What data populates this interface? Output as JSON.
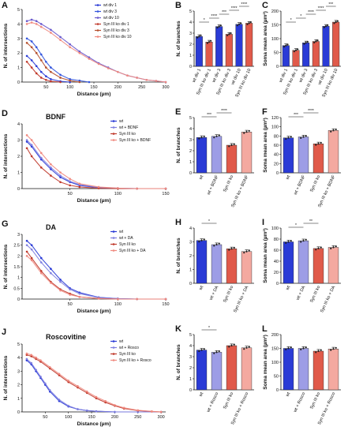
{
  "panel_labels": [
    "A",
    "B",
    "C",
    "D",
    "E",
    "F",
    "G",
    "H",
    "I",
    "J",
    "K",
    "L"
  ],
  "chart_data": [
    {
      "id": "A",
      "type": "line",
      "xlabel": "Distance (µm)",
      "ylabel": "N. of intersections",
      "xlim": [
        0,
        300
      ],
      "ylim": [
        0,
        5
      ],
      "xticks": [
        50,
        100,
        150,
        200,
        250,
        300
      ],
      "yticks": [
        0,
        1,
        2,
        3,
        4,
        5
      ],
      "legend": "top-right",
      "series": [
        {
          "name": "wt div 1",
          "color": "#2a3bd6",
          "x": [
            10,
            20,
            30,
            40,
            50,
            60,
            80,
            100
          ],
          "y": [
            1.8,
            1.5,
            1.1,
            0.7,
            0.4,
            0.2,
            0.05,
            0
          ]
        },
        {
          "name": "wt div 3",
          "color": "#3355dd",
          "x": [
            10,
            20,
            30,
            40,
            50,
            60,
            80,
            100,
            120,
            140
          ],
          "y": [
            3.0,
            2.8,
            2.4,
            1.9,
            1.4,
            1.0,
            0.5,
            0.2,
            0.1,
            0
          ]
        },
        {
          "name": "wt div 10",
          "color": "#6a5acd",
          "x": [
            10,
            20,
            30,
            40,
            60,
            80,
            100,
            120,
            140,
            160,
            180,
            200,
            220,
            240,
            260,
            280,
            300
          ],
          "y": [
            4.2,
            4.3,
            4.2,
            4.0,
            3.6,
            3.1,
            2.6,
            2.1,
            1.7,
            1.3,
            1.0,
            0.7,
            0.45,
            0.3,
            0.15,
            0.08,
            0
          ]
        },
        {
          "name": "Syn III ko div 1",
          "color": "#c0392b",
          "x": [
            10,
            20,
            30,
            40,
            50,
            60,
            80
          ],
          "y": [
            1.4,
            1.0,
            0.6,
            0.3,
            0.15,
            0.05,
            0
          ]
        },
        {
          "name": "Syn III ko div 3",
          "color": "#b5502e",
          "x": [
            10,
            20,
            30,
            40,
            50,
            60,
            80,
            100,
            120
          ],
          "y": [
            2.7,
            2.4,
            2.0,
            1.5,
            1.0,
            0.7,
            0.3,
            0.1,
            0
          ]
        },
        {
          "name": "Syn III ko div 10",
          "color": "#f08a80",
          "x": [
            10,
            20,
            30,
            40,
            60,
            80,
            100,
            120,
            140,
            160,
            180,
            200,
            220,
            240,
            260,
            280,
            300
          ],
          "y": [
            4.0,
            4.1,
            4.0,
            3.8,
            3.4,
            2.9,
            2.4,
            2.0,
            1.6,
            1.25,
            0.95,
            0.7,
            0.45,
            0.3,
            0.15,
            0.08,
            0
          ]
        }
      ]
    },
    {
      "id": "B",
      "type": "bar",
      "ylabel": "N. of branches",
      "ylim": [
        0,
        5
      ],
      "yticks": [
        0,
        1,
        2,
        3,
        4,
        5
      ],
      "categories": [
        "wt div 1",
        "Syn III ko div 1",
        "wt div 3",
        "Syn III ko div 3",
        "wt div 10",
        "Syn III ko div 10"
      ],
      "values": [
        2.7,
        2.2,
        3.6,
        2.9,
        3.8,
        3.9
      ],
      "colors": [
        "#2a3bd6",
        "#e05a4a",
        "#2a3bd6",
        "#e05a4a",
        "#2a3bd6",
        "#e05a4a"
      ],
      "significance": [
        "*",
        "****",
        "***",
        "****",
        "****"
      ]
    },
    {
      "id": "C",
      "type": "bar",
      "ylabel": "Soma mean area (µm²)",
      "ylim": [
        0,
        200
      ],
      "yticks": [
        0,
        50,
        100,
        150,
        200
      ],
      "categories": [
        "wt div 1",
        "Syn III ko div 1",
        "wt div 3",
        "Syn III ko div 3",
        "wt div 10",
        "Syn III ko div 10"
      ],
      "values": [
        75,
        58,
        85,
        90,
        145,
        160
      ],
      "colors": [
        "#2a3bd6",
        "#e05a4a",
        "#2a3bd6",
        "#e05a4a",
        "#2a3bd6",
        "#e05a4a"
      ],
      "significance": [
        "*",
        "*",
        "****",
        "****",
        "***"
      ]
    },
    {
      "id": "D",
      "type": "line",
      "title": "BDNF",
      "xlabel": "Distance (µm)",
      "ylabel": "N. of intersections",
      "xlim": [
        0,
        150
      ],
      "ylim": [
        0,
        4
      ],
      "xticks": [
        50,
        100,
        150
      ],
      "yticks": [
        0,
        1,
        2,
        3,
        4
      ],
      "legend": "top-right",
      "series": [
        {
          "name": "wt",
          "color": "#2a3bd6",
          "x": [
            5,
            10,
            20,
            30,
            40,
            50,
            60,
            80,
            100,
            120,
            150
          ],
          "y": [
            2.9,
            2.6,
            1.8,
            1.2,
            0.7,
            0.4,
            0.2,
            0.05,
            0.02,
            0,
            0
          ]
        },
        {
          "name": "wt + BDNF",
          "color": "#8080e0",
          "x": [
            5,
            10,
            20,
            30,
            40,
            50,
            60,
            80,
            100,
            120,
            150
          ],
          "y": [
            3.0,
            2.7,
            1.9,
            1.3,
            0.8,
            0.45,
            0.25,
            0.07,
            0.02,
            0,
            0
          ]
        },
        {
          "name": "Syn III ko",
          "color": "#c0392b",
          "x": [
            5,
            10,
            20,
            30,
            40,
            50,
            60,
            80,
            100,
            120,
            150
          ],
          "y": [
            2.5,
            2.0,
            1.3,
            0.8,
            0.4,
            0.2,
            0.1,
            0.02,
            0,
            0,
            0
          ]
        },
        {
          "name": "Syn III ko + BDNF",
          "color": "#f08a80",
          "x": [
            5,
            10,
            20,
            30,
            40,
            50,
            60,
            80,
            100,
            120,
            150
          ],
          "y": [
            3.3,
            3.0,
            2.2,
            1.5,
            1.0,
            0.6,
            0.3,
            0.1,
            0.03,
            0,
            0
          ]
        }
      ]
    },
    {
      "id": "E",
      "type": "bar",
      "ylabel": "N. of branches",
      "ylim": [
        0,
        5
      ],
      "yticks": [
        0,
        1,
        2,
        3,
        4,
        5
      ],
      "categories": [
        "wt",
        "wt + BDNF",
        "Syn III ko",
        "Syn III ko + BDNF"
      ],
      "values": [
        3.2,
        3.3,
        2.5,
        3.7
      ],
      "colors": [
        "#2a3bd6",
        "#9d9de6",
        "#e05a4a",
        "#f4a9a0"
      ],
      "significance": [
        "***",
        "****"
      ]
    },
    {
      "id": "F",
      "type": "bar",
      "ylabel": "Soma mean area (µm²)",
      "ylim": [
        0,
        120
      ],
      "yticks": [
        0,
        20,
        40,
        60,
        80,
        100,
        120
      ],
      "categories": [
        "wt",
        "wt + BDNF",
        "Syn III ko",
        "Syn III ko + BDNF"
      ],
      "values": [
        76,
        78,
        63,
        92
      ],
      "colors": [
        "#2a3bd6",
        "#9d9de6",
        "#e05a4a",
        "#f4a9a0"
      ],
      "significance": [
        "***",
        "****"
      ]
    },
    {
      "id": "G",
      "type": "line",
      "title": "DA",
      "xlabel": "Distance (µm)",
      "ylabel": "N. of intersections",
      "xlim": [
        0,
        150
      ],
      "ylim": [
        0,
        3
      ],
      "xticks": [
        50,
        100,
        150
      ],
      "yticks": [
        0.0,
        0.5,
        1.0,
        1.5,
        2.0,
        2.5,
        3.0
      ],
      "legend": "top-right",
      "series": [
        {
          "name": "wt",
          "color": "#2a3bd6",
          "x": [
            5,
            10,
            20,
            30,
            40,
            50,
            60,
            80,
            100,
            120,
            150
          ],
          "y": [
            2.7,
            2.5,
            1.9,
            1.4,
            0.9,
            0.5,
            0.3,
            0.08,
            0.02,
            0,
            0
          ]
        },
        {
          "name": "wt + DA",
          "color": "#8080e0",
          "x": [
            5,
            10,
            20,
            30,
            40,
            50,
            60,
            80,
            100,
            120,
            150
          ],
          "y": [
            2.5,
            2.3,
            1.7,
            1.2,
            0.8,
            0.45,
            0.25,
            0.07,
            0.02,
            0,
            0
          ]
        },
        {
          "name": "Syn III ko",
          "color": "#c0392b",
          "x": [
            5,
            10,
            20,
            30,
            40,
            50,
            60,
            80,
            100,
            120,
            150
          ],
          "y": [
            2.2,
            1.9,
            1.3,
            0.8,
            0.45,
            0.25,
            0.1,
            0.03,
            0,
            0,
            0
          ]
        },
        {
          "name": "Syn III ko + DA",
          "color": "#f08a80",
          "x": [
            5,
            10,
            20,
            30,
            40,
            50,
            60,
            80,
            100,
            120,
            150
          ],
          "y": [
            2.0,
            1.8,
            1.2,
            0.75,
            0.4,
            0.2,
            0.1,
            0.02,
            0,
            0,
            0
          ]
        }
      ]
    },
    {
      "id": "H",
      "type": "bar",
      "ylabel": "N. of branches",
      "ylim": [
        0,
        4
      ],
      "yticks": [
        0,
        1,
        2,
        3,
        4
      ],
      "categories": [
        "wt",
        "wt + DA",
        "Syn III ko",
        "Syn III ko + DA"
      ],
      "values": [
        3.1,
        2.8,
        2.5,
        2.3
      ],
      "colors": [
        "#2a3bd6",
        "#9d9de6",
        "#e05a4a",
        "#f4a9a0"
      ],
      "significance": [
        "*"
      ]
    },
    {
      "id": "I",
      "type": "bar",
      "ylabel": "Soma mean area (µm²)",
      "ylim": [
        0,
        100
      ],
      "yticks": [
        0,
        20,
        40,
        60,
        80,
        100
      ],
      "categories": [
        "wt",
        "wt + DA",
        "Syn III ko",
        "Syn III ko + DA"
      ],
      "values": [
        75,
        77,
        63,
        65
      ],
      "colors": [
        "#2a3bd6",
        "#9d9de6",
        "#e05a4a",
        "#f4a9a0"
      ],
      "significance": [
        "*",
        "**"
      ]
    },
    {
      "id": "J",
      "type": "line",
      "title": "Roscovitine",
      "xlabel": "Distance (µm)",
      "ylabel": "N. of intersections",
      "xlim": [
        0,
        310
      ],
      "ylim": [
        0,
        5
      ],
      "xticks": [
        50,
        100,
        150,
        200,
        250,
        300
      ],
      "yticks": [
        0,
        1,
        2,
        3,
        4,
        5
      ],
      "legend": "top-right",
      "series": [
        {
          "name": "wt",
          "color": "#2a3bd6",
          "x": [
            10,
            20,
            30,
            40,
            50,
            60,
            80,
            100,
            120,
            140,
            160,
            200,
            250,
            300
          ],
          "y": [
            3.8,
            3.5,
            3.0,
            2.5,
            2.0,
            1.5,
            0.8,
            0.4,
            0.2,
            0.1,
            0.05,
            0,
            0,
            0
          ]
        },
        {
          "name": "wt + Rosco",
          "color": "#8080e0",
          "x": [
            10,
            20,
            30,
            40,
            50,
            60,
            80,
            100,
            120,
            140,
            160,
            200,
            250,
            300
          ],
          "y": [
            3.9,
            3.6,
            3.1,
            2.6,
            2.1,
            1.6,
            0.9,
            0.45,
            0.2,
            0.1,
            0.05,
            0,
            0,
            0
          ]
        },
        {
          "name": "Syn III ko",
          "color": "#c0392b",
          "x": [
            10,
            20,
            30,
            40,
            60,
            80,
            100,
            120,
            140,
            160,
            180,
            200,
            220,
            250,
            280,
            300
          ],
          "y": [
            4.2,
            4.1,
            3.9,
            3.7,
            3.2,
            2.7,
            2.2,
            1.8,
            1.4,
            1.0,
            0.7,
            0.45,
            0.25,
            0.1,
            0.03,
            0
          ]
        },
        {
          "name": "Syn III ko + Rosco",
          "color": "#f08a80",
          "x": [
            10,
            20,
            30,
            40,
            60,
            80,
            100,
            120,
            140,
            160,
            180,
            200,
            220,
            250,
            280,
            300
          ],
          "y": [
            4.3,
            4.2,
            4.0,
            3.8,
            3.3,
            2.8,
            2.3,
            1.9,
            1.5,
            1.1,
            0.8,
            0.5,
            0.3,
            0.12,
            0.04,
            0
          ]
        }
      ]
    },
    {
      "id": "K",
      "type": "bar",
      "ylabel": "N. of branches",
      "ylim": [
        0,
        5
      ],
      "yticks": [
        0,
        1,
        2,
        3,
        4,
        5
      ],
      "categories": [
        "wt",
        "wt + Rosco",
        "Syn III ko",
        "Syn III ko + Rosco"
      ],
      "values": [
        3.6,
        3.4,
        4.0,
        3.8
      ],
      "colors": [
        "#2a3bd6",
        "#9d9de6",
        "#e05a4a",
        "#f4a9a0"
      ],
      "significance": [
        "*"
      ]
    },
    {
      "id": "L",
      "type": "bar",
      "ylabel": "Soma mean area (µm²)",
      "ylim": [
        0,
        200
      ],
      "yticks": [
        0,
        50,
        100,
        150,
        200
      ],
      "categories": [
        "wt",
        "wt + Rosco",
        "Syn III ko",
        "Syn III ko + Rosco"
      ],
      "values": [
        150,
        150,
        140,
        148
      ],
      "colors": [
        "#2a3bd6",
        "#9d9de6",
        "#e05a4a",
        "#f4a9a0"
      ],
      "significance": []
    }
  ]
}
